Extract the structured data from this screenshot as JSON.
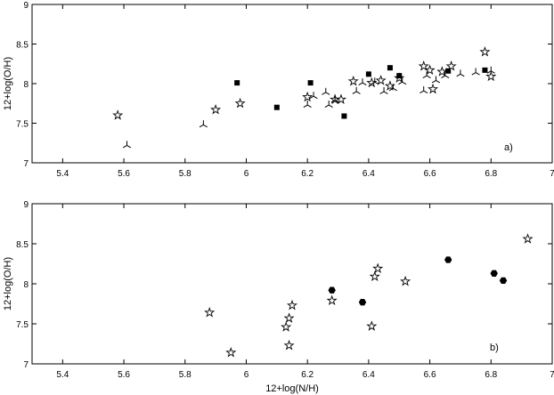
{
  "chart_data": [
    {
      "type": "scatter",
      "panel_label": "a)",
      "xlabel": "",
      "ylabel": "12+log(O/H)",
      "xlim": [
        5.3,
        7.0
      ],
      "ylim": [
        7.0,
        9.0
      ],
      "xticks": [
        "5.4",
        "5.6",
        "5.8",
        "6",
        "6.2",
        "6.4",
        "6.6",
        "6.8",
        "7"
      ],
      "yticks": [
        "7",
        "7.5",
        "8",
        "8.5",
        "9"
      ],
      "grid": false,
      "series": [
        {
          "marker": "star",
          "points": [
            [
              5.58,
              7.6
            ],
            [
              5.9,
              7.67
            ],
            [
              5.98,
              7.75
            ],
            [
              6.2,
              7.83
            ],
            [
              6.29,
              7.8
            ],
            [
              6.31,
              7.8
            ],
            [
              6.35,
              8.03
            ],
            [
              6.41,
              8.01
            ],
            [
              6.44,
              8.04
            ],
            [
              6.47,
              7.97
            ],
            [
              6.5,
              8.07
            ],
            [
              6.58,
              8.22
            ],
            [
              6.6,
              8.17
            ],
            [
              6.61,
              7.93
            ],
            [
              6.64,
              8.15
            ],
            [
              6.67,
              8.22
            ],
            [
              6.78,
              8.4
            ],
            [
              6.8,
              8.09
            ]
          ]
        },
        {
          "marker": "square",
          "points": [
            [
              5.97,
              8.01
            ],
            [
              6.1,
              7.7
            ],
            [
              6.21,
              8.01
            ],
            [
              6.32,
              7.59
            ],
            [
              6.4,
              8.12
            ],
            [
              6.47,
              8.2
            ],
            [
              6.5,
              8.1
            ],
            [
              6.66,
              8.16
            ],
            [
              6.78,
              8.17
            ]
          ]
        },
        {
          "marker": "tri",
          "points": [
            [
              5.61,
              7.22
            ],
            [
              5.86,
              7.48
            ],
            [
              6.2,
              7.73
            ],
            [
              6.22,
              7.84
            ],
            [
              6.26,
              7.89
            ],
            [
              6.27,
              7.73
            ],
            [
              6.29,
              7.79
            ],
            [
              6.36,
              7.9
            ],
            [
              6.38,
              8.01
            ],
            [
              6.42,
              8.02
            ],
            [
              6.45,
              7.9
            ],
            [
              6.48,
              7.94
            ],
            [
              6.51,
              8.02
            ],
            [
              6.58,
              7.91
            ],
            [
              6.59,
              8.1
            ],
            [
              6.62,
              8.04
            ],
            [
              6.65,
              8.1
            ],
            [
              6.7,
              8.12
            ],
            [
              6.75,
              8.14
            ],
            [
              6.8,
              8.16
            ]
          ]
        }
      ]
    },
    {
      "type": "scatter",
      "panel_label": "b)",
      "xlabel": "12+log(N/H)",
      "ylabel": "12+log(O/H)",
      "xlim": [
        5.3,
        7.0
      ],
      "ylim": [
        7.0,
        9.0
      ],
      "xticks": [
        "5.4",
        "5.6",
        "5.8",
        "6",
        "6.2",
        "6.4",
        "6.6",
        "6.8",
        "7"
      ],
      "yticks": [
        "7",
        "7.5",
        "8",
        "8.5",
        "9"
      ],
      "grid": false,
      "series": [
        {
          "marker": "star",
          "points": [
            [
              5.88,
              7.64
            ],
            [
              5.95,
              7.14
            ],
            [
              6.13,
              7.46
            ],
            [
              6.14,
              7.57
            ],
            [
              6.14,
              7.23
            ],
            [
              6.15,
              7.73
            ],
            [
              6.28,
              7.79
            ],
            [
              6.41,
              7.47
            ],
            [
              6.42,
              8.09
            ],
            [
              6.43,
              8.19
            ],
            [
              6.52,
              8.03
            ],
            [
              6.92,
              8.56
            ]
          ]
        },
        {
          "marker": "hexagon",
          "points": [
            [
              6.28,
              7.92
            ],
            [
              6.38,
              7.77
            ],
            [
              6.66,
              8.3
            ],
            [
              6.81,
              8.13
            ],
            [
              6.84,
              8.04
            ]
          ]
        }
      ]
    }
  ]
}
